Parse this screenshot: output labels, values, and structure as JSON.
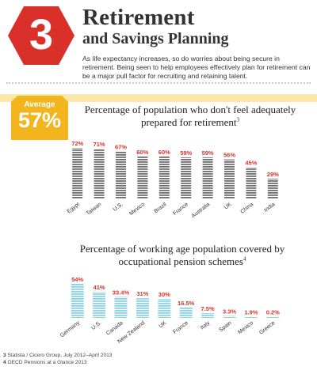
{
  "section": {
    "number": "3",
    "title": "Retirement",
    "subtitle": "and Savings Planning",
    "intro": "As life expectancy increases, so do worries about being secure in retirement. Being seen to help employees effectively plan for retirement can be a major pull factor for recruiting and retaining talent."
  },
  "badge": {
    "label": "Average",
    "value": "57%"
  },
  "footnotes": [
    {
      "num": "3",
      "text": "Statista / Cicero Group, July 2012–April 2013"
    },
    {
      "num": "4",
      "text": "OECD Pensions at a Glance 2013"
    }
  ],
  "colors": {
    "accent_red": "#d9302a",
    "badge_yellow": "#f2b51e",
    "ribbon_yellow": "#fbe7a8",
    "bar_gray": "#6e6e6e",
    "bar_blue": "#88d4ea",
    "label_red": "#d9302a"
  },
  "chart_data": [
    {
      "type": "bar",
      "title": "Percentage of population who don't feel adequately prepared for retirement",
      "title_footnote": "3",
      "categories": [
        "Egypt",
        "Taiwan",
        "U.S.",
        "Mexico",
        "Brazil",
        "France",
        "Australia",
        "UK",
        "China",
        "India"
      ],
      "values": [
        72,
        71,
        67,
        60,
        60,
        59,
        59,
        56,
        45,
        29
      ],
      "labels": [
        "72%",
        "71%",
        "67%",
        "60%",
        "60%",
        "59%",
        "59%",
        "56%",
        "45%",
        "29%"
      ],
      "ylim": [
        0,
        80
      ],
      "grid": false
    },
    {
      "type": "bar",
      "title": "Percentage of working age population covered by occupational pension schemes",
      "title_footnote": "4",
      "categories": [
        "Germany",
        "U.S.",
        "Canada",
        "New Zealand",
        "UK",
        "France",
        "Italy",
        "Spain",
        "Mexico",
        "Greece"
      ],
      "values": [
        54,
        41,
        33.4,
        31,
        30,
        16.5,
        7.5,
        3.3,
        1.9,
        0.2
      ],
      "labels": [
        "54%",
        "41%",
        "33.4%",
        "31%",
        "30%",
        "16.5%",
        "7.5%",
        "3.3%",
        "1.9%",
        "0.2%"
      ],
      "ylim": [
        0,
        60
      ],
      "grid": false
    }
  ]
}
